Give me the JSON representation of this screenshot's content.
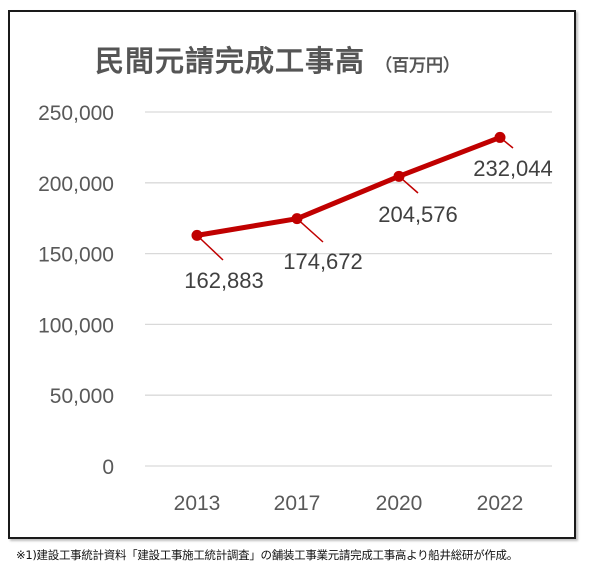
{
  "title": "民間元請完成工事高",
  "unit": "（百万円）",
  "footnote": "※1)建設工事統計資料「建設工事施工統計調査」の舗装工事業元請完成工事高より船井総研が作成。",
  "colors": {
    "line": "#C00000",
    "grid": "#D9D9D9",
    "text": "#595959"
  },
  "y_axis": {
    "ticks": [
      "250,000",
      "200,000",
      "150,000",
      "100,000",
      "50,000",
      "0"
    ]
  },
  "x_axis": {
    "ticks": [
      "2013",
      "2017",
      "2020",
      "2022"
    ]
  },
  "data_labels": [
    "162,883",
    "174,672",
    "204,576",
    "232,044"
  ],
  "chart_data": {
    "type": "line",
    "title": "民間元請完成工事高（百万円）",
    "xlabel": "",
    "ylabel": "",
    "categories": [
      "2013",
      "2017",
      "2020",
      "2022"
    ],
    "series": [
      {
        "name": "民間元請完成工事高",
        "values": [
          162883,
          174672,
          204576,
          232044
        ]
      }
    ],
    "ylim": [
      0,
      250000
    ],
    "yticks": [
      0,
      50000,
      100000,
      150000,
      200000,
      250000
    ],
    "grid": true,
    "legend": "none",
    "data_labels": true
  }
}
